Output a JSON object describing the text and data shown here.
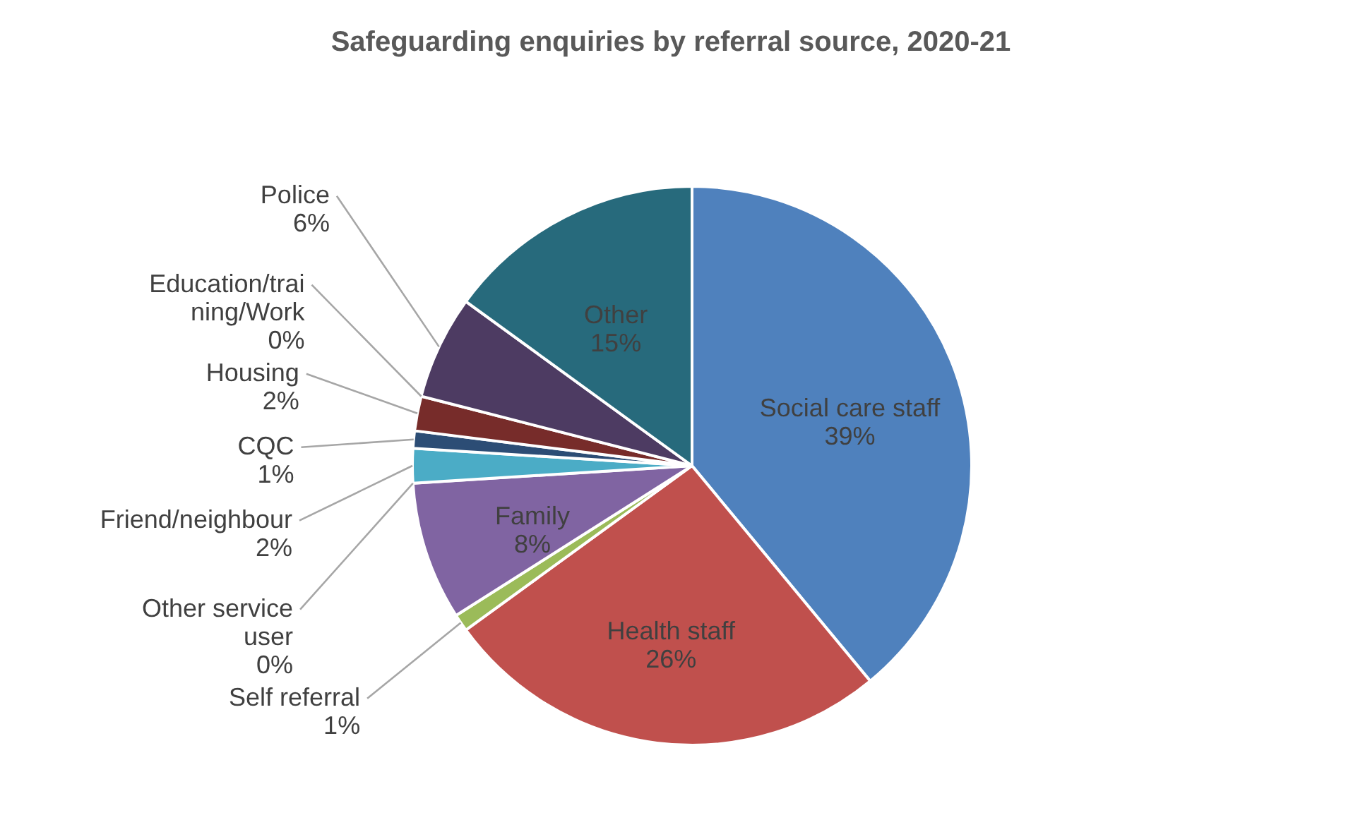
{
  "chart_data": {
    "type": "pie",
    "title": "Safeguarding enquiries by referral source, 2020-21",
    "categories": [
      "Social care staff",
      "Health staff",
      "Self referral",
      "Family",
      "Other service user",
      "Friend/neighbour",
      "CQC",
      "Housing",
      "Education/training/Work",
      "Police",
      "Other"
    ],
    "values": [
      39,
      26,
      1,
      8,
      0,
      2,
      1,
      2,
      0,
      6,
      15
    ],
    "value_labels": [
      "39%",
      "26%",
      "1%",
      "8%",
      "0%",
      "2%",
      "1%",
      "2%",
      "0%",
      "6%",
      "15%"
    ],
    "colors": [
      "#4f81bd",
      "#c0504d",
      "#9bbb59",
      "#8064a2",
      "#f79646",
      "#4bacc6",
      "#2c4d75",
      "#772c2a",
      "#5f7530",
      "#4d3b62",
      "#276a7c"
    ],
    "legend": false
  }
}
